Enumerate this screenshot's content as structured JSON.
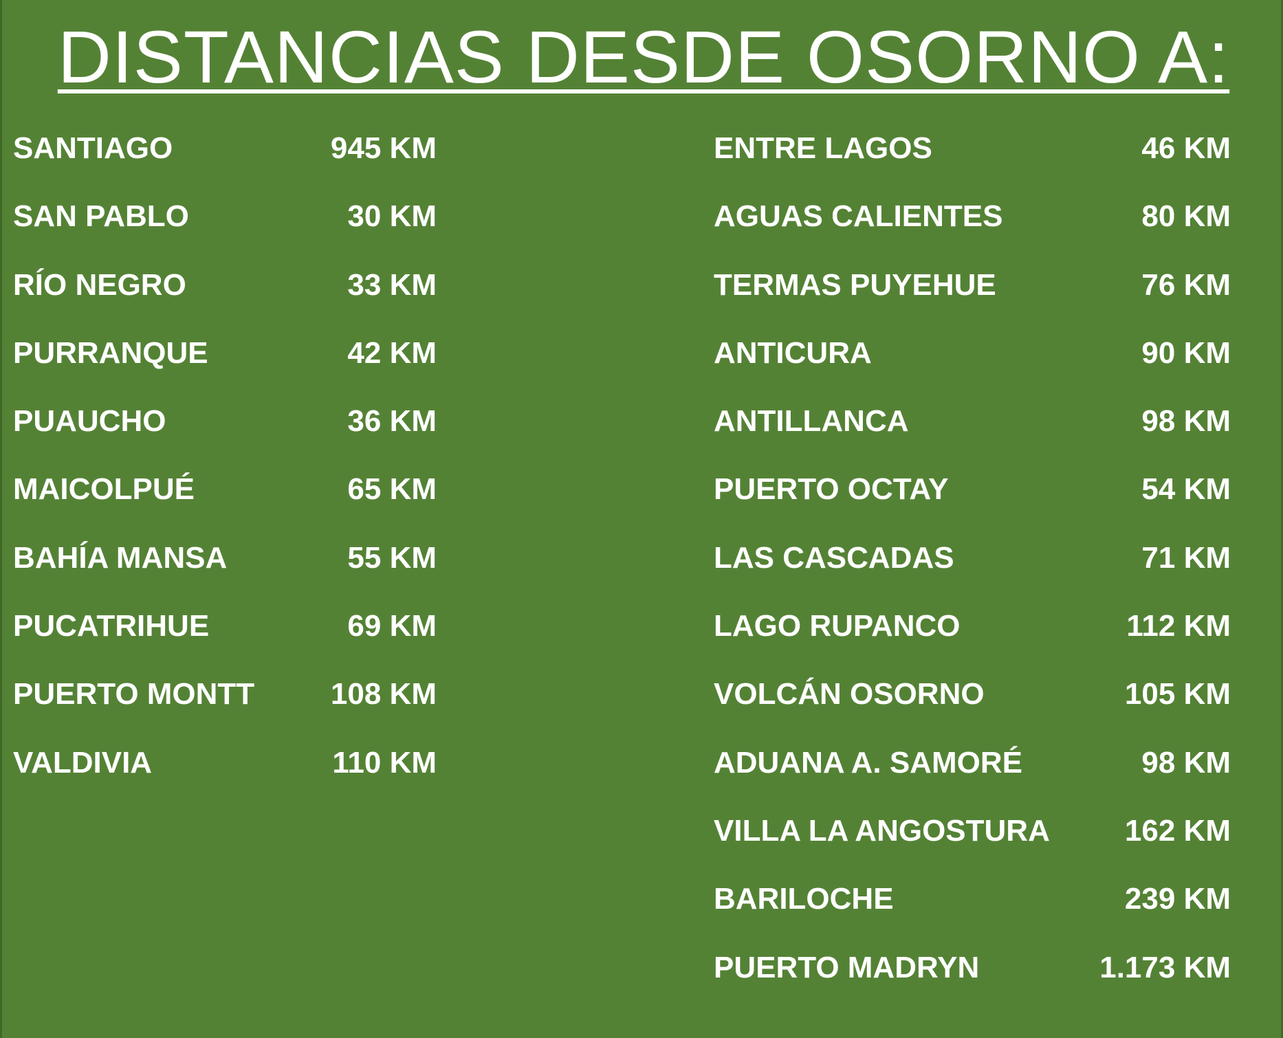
{
  "title": "DISTANCIAS DESDE OSORNO A:",
  "left_column": [
    {
      "place": "SANTIAGO",
      "distance": "945 KM"
    },
    {
      "place": "SAN PABLO",
      "distance": "30 KM"
    },
    {
      "place": "RÍO NEGRO",
      "distance": "33 KM"
    },
    {
      "place": "PURRANQUE",
      "distance": "42 KM"
    },
    {
      "place": "PUAUCHO",
      "distance": "36 KM"
    },
    {
      "place": "MAICOLPUÉ",
      "distance": "65 KM"
    },
    {
      "place": "BAHÍA MANSA",
      "distance": "55 KM"
    },
    {
      "place": "PUCATRIHUE",
      "distance": "69 KM"
    },
    {
      "place": "PUERTO MONTT",
      "distance": "108 KM"
    },
    {
      "place": "VALDIVIA",
      "distance": "110 KM"
    }
  ],
  "right_column": [
    {
      "place": "ENTRE LAGOS",
      "distance": "46 KM"
    },
    {
      "place": "AGUAS CALIENTES",
      "distance": "80 KM"
    },
    {
      "place": "TERMAS PUYEHUE",
      "distance": "76 KM"
    },
    {
      "place": "ANTICURA",
      "distance": "90 KM"
    },
    {
      "place": "ANTILLANCA",
      "distance": "98 KM"
    },
    {
      "place": "PUERTO OCTAY",
      "distance": "54 KM"
    },
    {
      "place": "LAS CASCADAS",
      "distance": "71 KM"
    },
    {
      "place": "LAGO RUPANCO",
      "distance": "112 KM"
    },
    {
      "place": "VOLCÁN OSORNO",
      "distance": "105 KM"
    },
    {
      "place": "ADUANA A. SAMORÉ",
      "distance": "98 KM"
    },
    {
      "place": "VILLA LA ANGOSTURA",
      "distance": "162 KM"
    },
    {
      "place": "BARILOCHE",
      "distance": "239 KM"
    },
    {
      "place": "PUERTO MADRYN",
      "distance": "1.173 KM"
    }
  ],
  "colors": {
    "background": "#548235",
    "text": "#ffffff"
  }
}
